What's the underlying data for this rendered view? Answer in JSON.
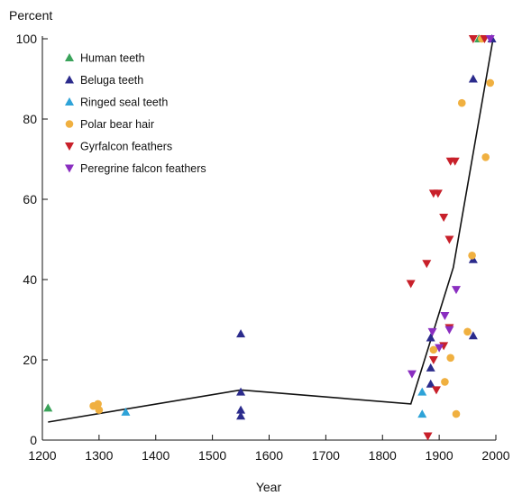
{
  "chart_data": {
    "type": "scatter",
    "title": "",
    "ylabel": "Percent",
    "xlabel": "Year",
    "xlim": [
      1200,
      2000
    ],
    "ylim": [
      0,
      100
    ],
    "x_ticks": [
      1200,
      1300,
      1400,
      1500,
      1600,
      1700,
      1800,
      1900,
      2000
    ],
    "y_ticks": [
      0,
      20,
      40,
      60,
      80,
      100
    ],
    "legend": {
      "position": "top-left"
    },
    "grid": false,
    "series": [
      {
        "name": "Human teeth",
        "marker": "triangle-up",
        "color": "#3aa35a",
        "points": [
          [
            1210,
            8
          ],
          [
            1970,
            100
          ]
        ]
      },
      {
        "name": "Beluga teeth",
        "marker": "triangle-up",
        "color": "#2b2b8c",
        "points": [
          [
            1550,
            26.5
          ],
          [
            1550,
            12
          ],
          [
            1550,
            7.5
          ],
          [
            1550,
            6
          ],
          [
            1885,
            25.5
          ],
          [
            1885,
            18
          ],
          [
            1885,
            14
          ],
          [
            1960,
            90
          ],
          [
            1960,
            45
          ],
          [
            1960,
            26
          ],
          [
            1993,
            100
          ]
        ]
      },
      {
        "name": "Ringed seal teeth",
        "marker": "triangle-up",
        "color": "#2ea3d8",
        "points": [
          [
            1347,
            7
          ],
          [
            1870,
            12
          ],
          [
            1870,
            6.5
          ]
        ]
      },
      {
        "name": "Polar bear hair",
        "marker": "circle",
        "color": "#f0b040",
        "points": [
          [
            1290,
            8.5
          ],
          [
            1298,
            9
          ],
          [
            1300,
            7.5
          ],
          [
            1890,
            22.5
          ],
          [
            1910,
            14.5
          ],
          [
            1920,
            20.5
          ],
          [
            1930,
            6.5
          ],
          [
            1940,
            84
          ],
          [
            1950,
            27
          ],
          [
            1958,
            46
          ],
          [
            1975,
            100
          ],
          [
            1982,
            70.5
          ],
          [
            1990,
            89
          ]
        ]
      },
      {
        "name": "Gyrfalcon feathers",
        "marker": "triangle-down",
        "color": "#c8202a",
        "points": [
          [
            1850,
            39
          ],
          [
            1878,
            44
          ],
          [
            1880,
            1
          ],
          [
            1890,
            61.5
          ],
          [
            1898,
            61.5
          ],
          [
            1908,
            55.5
          ],
          [
            1918,
            50
          ],
          [
            1920,
            69.5
          ],
          [
            1928,
            69.5
          ],
          [
            1890,
            20
          ],
          [
            1895,
            12.5
          ],
          [
            1908,
            23.5
          ],
          [
            1918,
            28
          ],
          [
            1960,
            100
          ],
          [
            1980,
            100
          ]
        ]
      },
      {
        "name": "Peregrine falcon feathers",
        "marker": "triangle-down",
        "color": "#8a2ec0",
        "points": [
          [
            1852,
            16.5
          ],
          [
            1888,
            27
          ],
          [
            1900,
            23
          ],
          [
            1910,
            31
          ],
          [
            1918,
            27.5
          ],
          [
            1930,
            37.5
          ],
          [
            1990,
            100
          ]
        ]
      }
    ],
    "trend_line": {
      "name": "",
      "color": "#111111",
      "points": [
        [
          1210,
          4.5
        ],
        [
          1550,
          12.5
        ],
        [
          1850,
          9
        ],
        [
          1925,
          43
        ],
        [
          1995,
          100
        ]
      ]
    }
  }
}
